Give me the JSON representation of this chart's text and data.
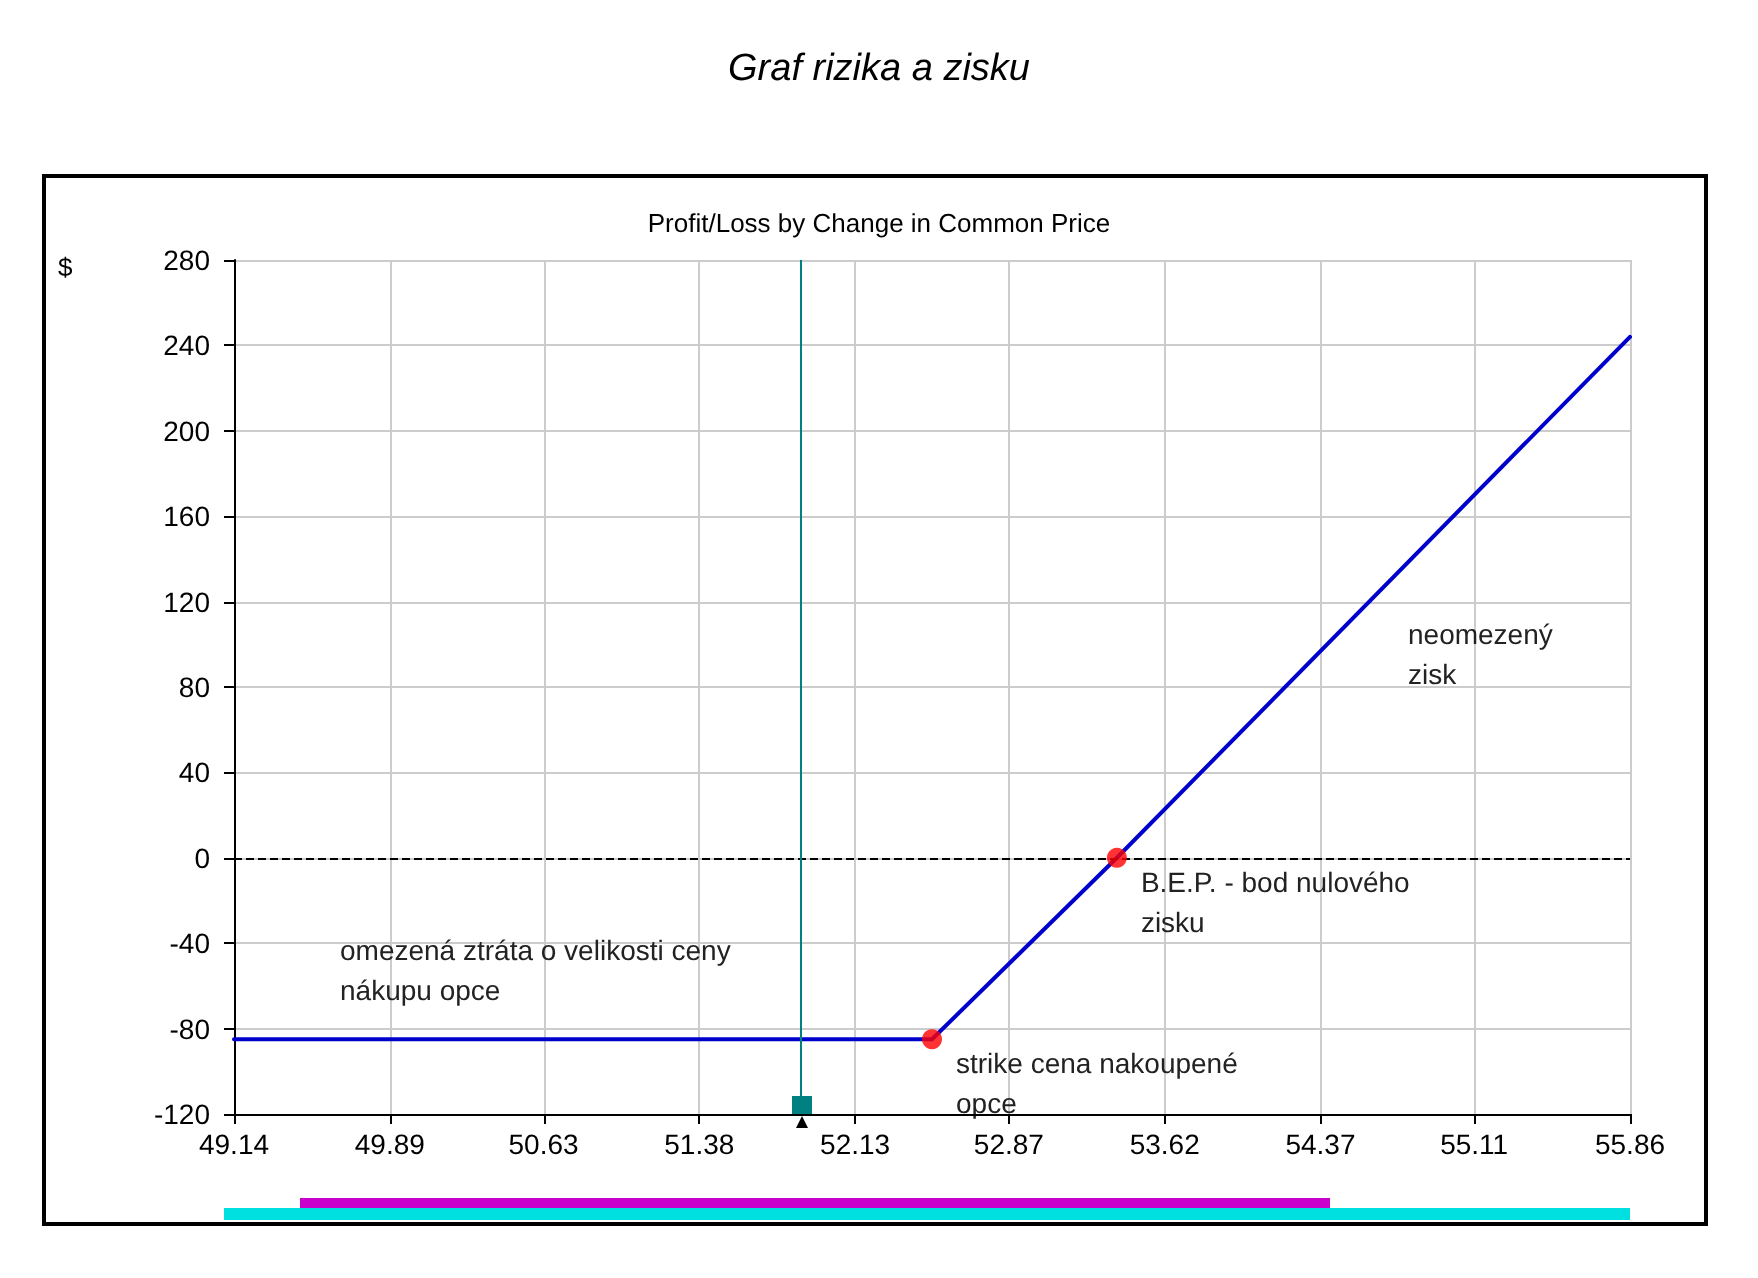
{
  "chart_data": {
    "type": "line",
    "title": "Graf rizika a zisku",
    "subtitle": "Profit/Loss by Change in Common Price",
    "ylabel": "$",
    "series": [
      {
        "color": "#0000cc",
        "marker": "none",
        "x": [
          49.14,
          52.5,
          53.39,
          55.86
        ],
        "values": [
          -85,
          -85,
          0,
          244
        ]
      },
      {
        "type": "scatter",
        "color": "#ff0000",
        "marker": "circle",
        "x": [
          52.5,
          53.39
        ],
        "values": [
          -85,
          0
        ]
      }
    ],
    "xlim": [
      49.14,
      55.86
    ],
    "xticks": [
      49.14,
      49.89,
      50.63,
      51.38,
      52.13,
      52.87,
      53.62,
      54.37,
      55.11,
      55.86
    ],
    "ylim": [
      -120,
      280
    ],
    "yticks": [
      -120,
      -80,
      -40,
      0,
      40,
      80,
      120,
      160,
      200,
      240,
      280
    ],
    "ref_lines": [
      {
        "axis": "y",
        "value": 0,
        "color": "#000000",
        "line_style": "dashed"
      },
      {
        "axis": "x",
        "value": 51.87,
        "color": "#008080",
        "line_style": "solid"
      }
    ],
    "annotations": [
      "omezená ztráta o velikosti ceny nákupu opce",
      {
        "text": "strike cena nakoupené opce",
        "x": 52.5,
        "y": -85
      },
      {
        "text": "B.E.P. - bod nulového zisku",
        "x": 53.39,
        "y": 0
      },
      "neomezený zisk"
    ],
    "grid": true,
    "line_style": "solid"
  }
}
